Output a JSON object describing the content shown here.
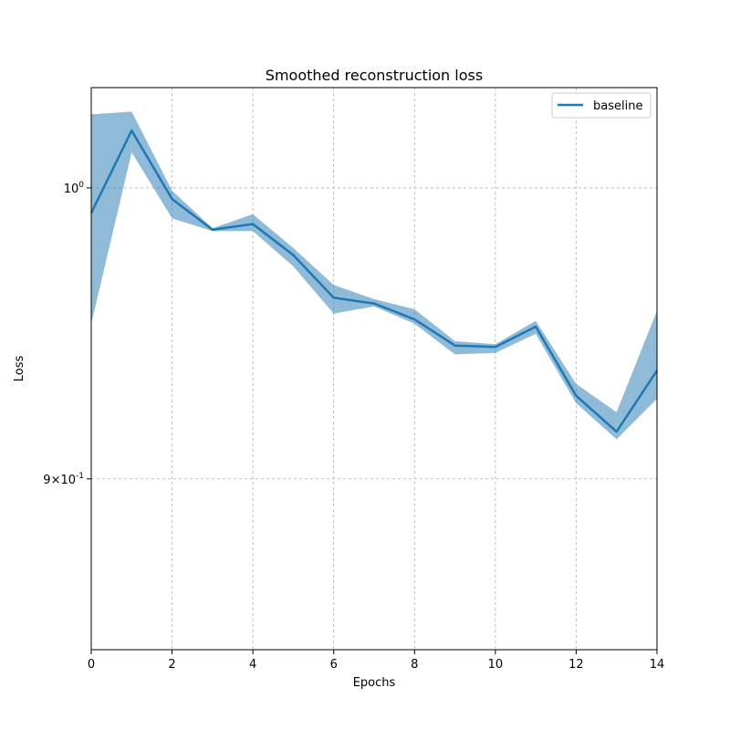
{
  "chart_data": {
    "type": "line",
    "title": "Smoothed reconstruction loss",
    "xlabel": "Epochs",
    "ylabel": "Loss",
    "y_scale": "log",
    "xlim": [
      0,
      14
    ],
    "ylim": [
      0.846,
      1.037
    ],
    "x_ticks": [
      0,
      2,
      4,
      6,
      8,
      10,
      12,
      14
    ],
    "y_ticks": [
      {
        "value": 1.0,
        "label": "10^0"
      },
      {
        "value": 0.9,
        "label": "9×10^-1"
      }
    ],
    "grid": true,
    "legend_position": "top-right",
    "colors": {
      "line": "#1f77b4",
      "band": "#1f77b4"
    },
    "series": [
      {
        "name": "baseline",
        "x": [
          0,
          1,
          2,
          3,
          4,
          5,
          6,
          7,
          8,
          9,
          10,
          11,
          12,
          13,
          14
        ],
        "values": [
          0.991,
          1.021,
          0.996,
          0.985,
          0.987,
          0.976,
          0.961,
          0.959,
          0.9535,
          0.9445,
          0.944,
          0.951,
          0.9275,
          0.9155,
          0.936
        ],
        "lower": [
          0.952,
          1.013,
          0.989,
          0.9845,
          0.9845,
          0.972,
          0.9555,
          0.958,
          0.952,
          0.9415,
          0.942,
          0.9485,
          0.925,
          0.913,
          0.9265
        ],
        "upper": [
          1.027,
          1.028,
          0.999,
          0.9855,
          0.9905,
          0.9785,
          0.9655,
          0.9605,
          0.957,
          0.946,
          0.945,
          0.953,
          0.9315,
          0.922,
          0.9565
        ]
      }
    ]
  }
}
